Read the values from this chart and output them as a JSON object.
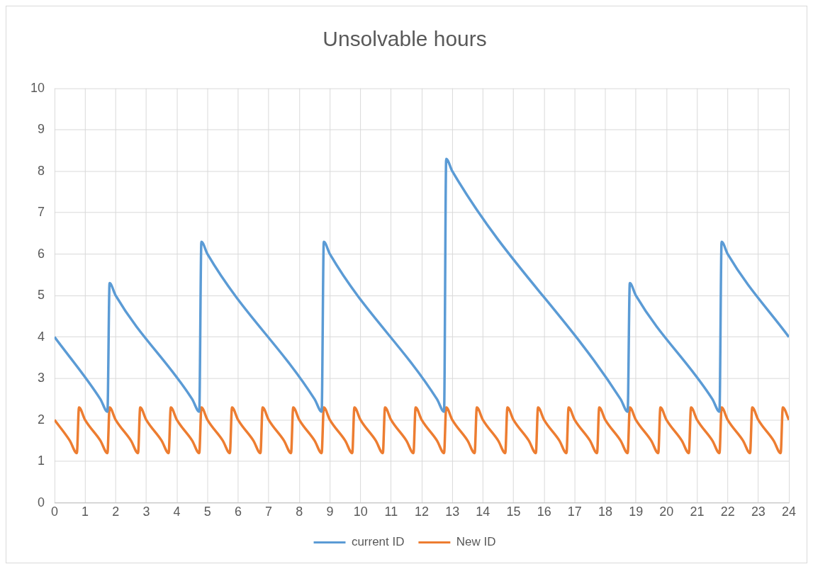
{
  "chart_data": {
    "type": "line",
    "title": "Unsolvable hours",
    "xlim": [
      0,
      24
    ],
    "xticks": [
      0,
      1,
      2,
      3,
      4,
      5,
      6,
      7,
      8,
      9,
      10,
      11,
      12,
      13,
      14,
      15,
      16,
      17,
      18,
      19,
      20,
      21,
      22,
      23,
      24
    ],
    "ylim": [
      0,
      10
    ],
    "yticks": [
      0,
      1,
      2,
      3,
      4,
      5,
      6,
      7,
      8,
      9,
      10
    ],
    "grid": true,
    "legend": "bottom",
    "marker": "none",
    "line_style": "solid",
    "series": [
      {
        "name": "current ID",
        "color": "#5b9bd5",
        "x": [
          0,
          1.5,
          1.73,
          1.8,
          2,
          4.5,
          4.73,
          4.8,
          5,
          8.5,
          8.73,
          8.8,
          9,
          12.5,
          12.73,
          12.8,
          13,
          18.5,
          18.73,
          18.8,
          19,
          21.5,
          21.73,
          21.8,
          22,
          24
        ],
        "values": [
          4,
          2.5,
          2.2,
          5.3,
          5,
          2.5,
          2.2,
          6.3,
          6,
          2.5,
          2.2,
          6.3,
          6,
          2.5,
          2.2,
          8.3,
          8,
          2.5,
          2.2,
          5.3,
          5,
          2.5,
          2.2,
          6.3,
          6,
          4
        ]
      },
      {
        "name": "New ID",
        "color": "#ed7d31",
        "x": [
          0,
          0.5,
          0.73,
          0.8,
          1,
          1.5,
          1.73,
          1.8,
          2,
          2.5,
          2.73,
          2.8,
          3,
          3.5,
          3.73,
          3.8,
          4,
          4.5,
          4.73,
          4.8,
          5,
          5.5,
          5.73,
          5.8,
          6,
          6.5,
          6.73,
          6.8,
          7,
          7.5,
          7.73,
          7.8,
          8,
          8.5,
          8.73,
          8.8,
          9,
          9.5,
          9.73,
          9.8,
          10,
          10.5,
          10.73,
          10.8,
          11,
          11.5,
          11.73,
          11.8,
          12,
          12.5,
          12.73,
          12.8,
          13,
          13.5,
          13.73,
          13.8,
          14,
          14.5,
          14.73,
          14.8,
          15,
          15.5,
          15.73,
          15.8,
          16,
          16.5,
          16.73,
          16.8,
          17,
          17.5,
          17.73,
          17.8,
          18,
          18.5,
          18.73,
          18.8,
          19,
          19.5,
          19.73,
          19.8,
          20,
          20.5,
          20.73,
          20.8,
          21,
          21.5,
          21.73,
          21.8,
          22,
          22.5,
          22.73,
          22.8,
          23,
          23.5,
          23.73,
          23.8,
          24
        ],
        "values": [
          2,
          1.5,
          1.2,
          2.3,
          2,
          1.5,
          1.2,
          2.3,
          2,
          1.5,
          1.2,
          2.3,
          2,
          1.5,
          1.2,
          2.3,
          2,
          1.5,
          1.2,
          2.3,
          2,
          1.5,
          1.2,
          2.3,
          2,
          1.5,
          1.2,
          2.3,
          2,
          1.5,
          1.2,
          2.3,
          2,
          1.5,
          1.2,
          2.3,
          2,
          1.5,
          1.2,
          2.3,
          2,
          1.5,
          1.2,
          2.3,
          2,
          1.5,
          1.2,
          2.3,
          2,
          1.5,
          1.2,
          2.3,
          2,
          1.5,
          1.2,
          2.3,
          2,
          1.5,
          1.2,
          2.3,
          2,
          1.5,
          1.2,
          2.3,
          2,
          1.5,
          1.2,
          2.3,
          2,
          1.5,
          1.2,
          2.3,
          2,
          1.5,
          1.2,
          2.3,
          2,
          1.5,
          1.2,
          2.3,
          2,
          1.5,
          1.2,
          2.3,
          2,
          1.5,
          1.2,
          2.3,
          2,
          1.5,
          1.2,
          2.3,
          2,
          1.5,
          1.2,
          2.3,
          2
        ]
      }
    ]
  }
}
